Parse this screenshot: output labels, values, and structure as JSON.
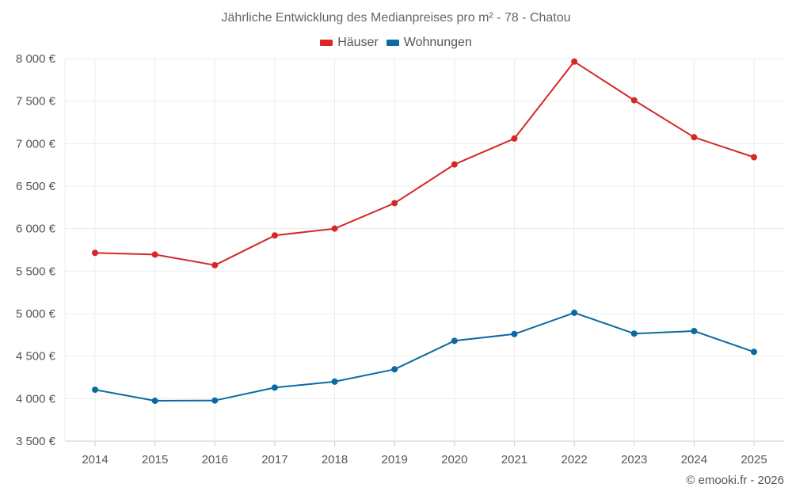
{
  "chart_data": {
    "type": "line",
    "title": "Jährliche Entwicklung des Medianpreises pro m² - 78 - Chatou",
    "xlabel": "",
    "ylabel": "",
    "categories": [
      "2014",
      "2015",
      "2016",
      "2017",
      "2018",
      "2019",
      "2020",
      "2021",
      "2022",
      "2023",
      "2024",
      "2025"
    ],
    "ylim": [
      3500,
      8000
    ],
    "yticks": [
      3500,
      4000,
      4500,
      5000,
      5500,
      6000,
      6500,
      7000,
      7500,
      8000
    ],
    "ytick_labels": [
      "3 500 €",
      "4 000 €",
      "4 500 €",
      "5 000 €",
      "5 500 €",
      "6 000 €",
      "6 500 €",
      "7 000 €",
      "7 500 €",
      "8 000 €"
    ],
    "grid": true,
    "legend_position": "top-center",
    "series": [
      {
        "name": "Häuser",
        "color": "#d62728",
        "values": [
          5715,
          5695,
          5570,
          5920,
          6000,
          6300,
          6755,
          7060,
          7965,
          7510,
          7075,
          6840
        ]
      },
      {
        "name": "Wohnungen",
        "color": "#0b6aa2",
        "values": [
          4105,
          3975,
          3978,
          4130,
          4200,
          4345,
          4680,
          4760,
          5010,
          4765,
          4795,
          4550
        ]
      }
    ]
  },
  "copyright": "© emooki.fr - 2026"
}
